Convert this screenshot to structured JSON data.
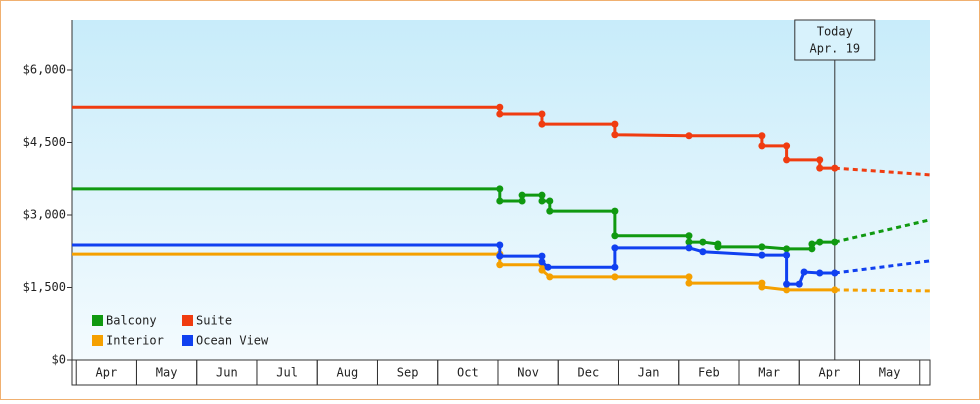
{
  "chart_data": {
    "type": "line",
    "xlim": [
      -0.07,
      14.17
    ],
    "ylim": [
      0,
      7000
    ],
    "xticks": [
      {
        "value": 0.5,
        "label": "Apr"
      },
      {
        "value": 1.5,
        "label": "May"
      },
      {
        "value": 2.5,
        "label": "Jun"
      },
      {
        "value": 3.5,
        "label": "Jul"
      },
      {
        "value": 4.5,
        "label": "Aug"
      },
      {
        "value": 5.5,
        "label": "Sep"
      },
      {
        "value": 6.5,
        "label": "Oct"
      },
      {
        "value": 7.5,
        "label": "Nov"
      },
      {
        "value": 8.5,
        "label": "Dec"
      },
      {
        "value": 9.5,
        "label": "Jan"
      },
      {
        "value": 10.5,
        "label": "Feb"
      },
      {
        "value": 11.5,
        "label": "Mar"
      },
      {
        "value": 12.5,
        "label": "Apr"
      },
      {
        "value": 13.5,
        "label": "May"
      }
    ],
    "yticks": [
      {
        "value": 0,
        "label": "$0"
      },
      {
        "value": 1500,
        "label": "$1,500"
      },
      {
        "value": 3000,
        "label": "$3,000"
      },
      {
        "value": 4500,
        "label": "$4,500"
      },
      {
        "value": 6000,
        "label": "$6,000"
      }
    ],
    "legend": "lower left",
    "annotation": {
      "lines": [
        "Today",
        "Apr. 19"
      ],
      "x": 12.59
    },
    "series": [
      {
        "name": "Balcony",
        "color": "#109910",
        "x": [
          -0.07,
          7.03,
          7.03,
          7.4,
          7.4,
          7.73,
          7.73,
          7.86,
          7.86,
          8.94,
          8.94,
          10.17,
          10.17,
          10.4,
          10.65,
          10.65,
          11.38,
          11.79,
          12.21,
          12.21,
          12.34,
          12.59
        ],
        "values": [
          3540,
          3540,
          3290,
          3290,
          3410,
          3410,
          3290,
          3290,
          3080,
          3080,
          2570,
          2570,
          2440,
          2440,
          2400,
          2340,
          2340,
          2300,
          2300,
          2400,
          2440,
          2440
        ],
        "forecast_x": [
          12.59,
          14.17
        ],
        "forecast_values": [
          2440,
          2900
        ]
      },
      {
        "name": "Suite",
        "color": "#f03c10",
        "x": [
          -0.07,
          7.03,
          7.03,
          7.73,
          7.73,
          8.94,
          8.94,
          10.17,
          11.38,
          11.38,
          11.79,
          11.79,
          12.34,
          12.34,
          12.59
        ],
        "values": [
          5230,
          5230,
          5090,
          5090,
          4880,
          4880,
          4660,
          4640,
          4640,
          4430,
          4430,
          4140,
          4140,
          3970,
          3970
        ],
        "forecast_x": [
          12.59,
          14.17
        ],
        "forecast_values": [
          3970,
          3830
        ]
      },
      {
        "name": "Interior",
        "color": "#f5a000",
        "x": [
          -0.07,
          7.03,
          7.03,
          7.73,
          7.73,
          7.86,
          8.94,
          10.17,
          10.17,
          11.38,
          11.38,
          11.79,
          12.59
        ],
        "values": [
          2190,
          2190,
          1970,
          1970,
          1860,
          1720,
          1720,
          1720,
          1590,
          1590,
          1510,
          1450,
          1450
        ],
        "forecast_x": [
          12.59,
          14.17
        ],
        "forecast_values": [
          1450,
          1430
        ]
      },
      {
        "name": "Ocean View",
        "color": "#1040f0",
        "x": [
          -0.07,
          7.03,
          7.03,
          7.73,
          7.73,
          7.83,
          8.94,
          8.94,
          10.17,
          10.4,
          11.38,
          11.79,
          11.79,
          12.0,
          12.08,
          12.34,
          12.59
        ],
        "values": [
          2380,
          2380,
          2150,
          2150,
          2030,
          1920,
          1920,
          2320,
          2320,
          2240,
          2170,
          2170,
          1570,
          1570,
          1820,
          1800,
          1800
        ],
        "forecast_x": [
          12.59,
          14.17
        ],
        "forecast_values": [
          1800,
          2050
        ]
      }
    ]
  }
}
